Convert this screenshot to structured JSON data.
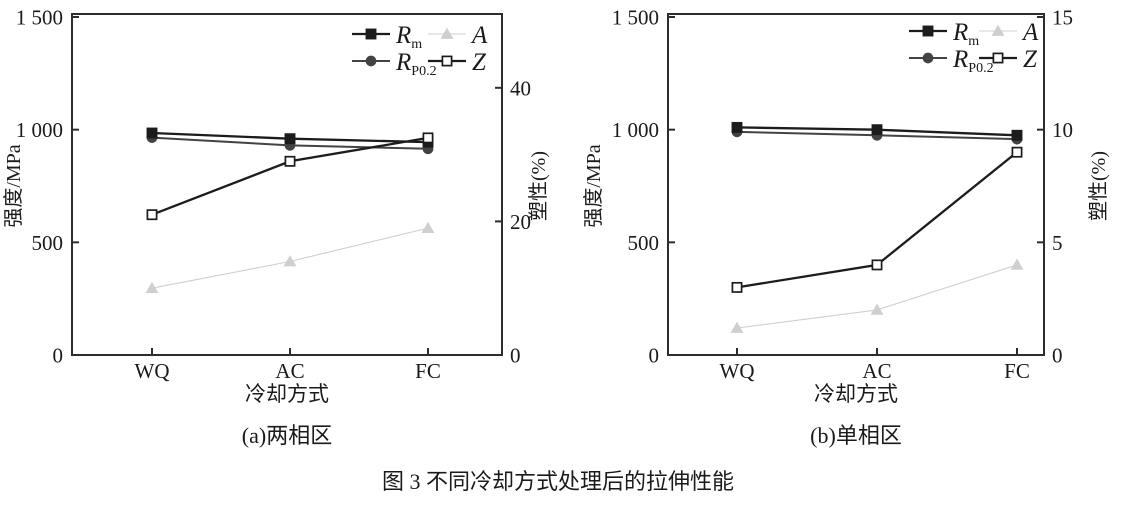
{
  "figure": {
    "caption": "图 3 不同冷却方式处理后的拉伸性能"
  },
  "chart_data": [
    {
      "id": "a",
      "type": "line",
      "subtitle": "(a)两相区",
      "xlabel": "冷却方式",
      "ylabel_left": "强度/MPa",
      "ylabel_right": "塑性(%)",
      "categories": [
        "WQ",
        "AC",
        "FC"
      ],
      "grid": false,
      "legend_position": "top-right",
      "left_axis": {
        "range": [
          0,
          1500
        ],
        "ticks": [
          {
            "value": 0,
            "label": "0"
          },
          {
            "value": 500,
            "label": "500"
          },
          {
            "value": 1000,
            "label": "1 000"
          },
          {
            "value": 1500,
            "label": "1 500"
          }
        ]
      },
      "right_axis": {
        "range": [
          0,
          50.6
        ],
        "ticks": [
          {
            "value": 0,
            "label": "0"
          },
          {
            "value": 20,
            "label": "20"
          },
          {
            "value": 40,
            "label": "40"
          }
        ]
      },
      "series": [
        {
          "key": "Rm",
          "label": "R",
          "label_sub": "m",
          "axis": "left",
          "marker": "square",
          "fill": "filled",
          "color": "#1c1c1c",
          "line_width": 2.3,
          "values": [
            985,
            960,
            945
          ]
        },
        {
          "key": "RP0.2",
          "label": "R",
          "label_sub": "P0.2",
          "axis": "left",
          "marker": "circle",
          "fill": "filled",
          "color": "#434343",
          "line_width": 2.0,
          "values": [
            965,
            930,
            915
          ]
        },
        {
          "key": "A",
          "label": "A",
          "label_sub": "",
          "axis": "right",
          "marker": "triangle",
          "fill": "filled",
          "color": "#cfcfcf",
          "line_width": 1.1,
          "values": [
            10,
            14,
            19
          ]
        },
        {
          "key": "Z",
          "label": "Z",
          "label_sub": "",
          "axis": "right",
          "marker": "square",
          "fill": "open",
          "color": "#1c1c1c",
          "line_width": 2.3,
          "values": [
            21,
            29,
            32.5
          ]
        }
      ],
      "legend_order": [
        [
          "Rm",
          "A"
        ],
        [
          "RP0.2",
          "Z"
        ]
      ]
    },
    {
      "id": "b",
      "type": "line",
      "subtitle": "(b)单相区",
      "xlabel": "冷却方式",
      "ylabel_left": "强度/MPa",
      "ylabel_right": "塑性(%)",
      "categories": [
        "WQ",
        "AC",
        "FC"
      ],
      "grid": false,
      "legend_position": "top-right",
      "left_axis": {
        "range": [
          0,
          1500
        ],
        "ticks": [
          {
            "value": 0,
            "label": "0"
          },
          {
            "value": 500,
            "label": "500"
          },
          {
            "value": 1000,
            "label": "1 000"
          },
          {
            "value": 1500,
            "label": "1 500"
          }
        ]
      },
      "right_axis": {
        "range": [
          0,
          15
        ],
        "ticks": [
          {
            "value": 0,
            "label": "0"
          },
          {
            "value": 5,
            "label": "5"
          },
          {
            "value": 10,
            "label": "10"
          },
          {
            "value": 15,
            "label": "15"
          }
        ]
      },
      "series": [
        {
          "key": "Rm",
          "label": "R",
          "label_sub": "m",
          "axis": "left",
          "marker": "square",
          "fill": "filled",
          "color": "#1c1c1c",
          "line_width": 2.3,
          "values": [
            1010,
            1000,
            975
          ]
        },
        {
          "key": "RP0.2",
          "label": "R",
          "label_sub": "P0.2",
          "axis": "left",
          "marker": "circle",
          "fill": "filled",
          "color": "#434343",
          "line_width": 2.0,
          "values": [
            990,
            975,
            958
          ]
        },
        {
          "key": "A",
          "label": "A",
          "label_sub": "",
          "axis": "right",
          "marker": "triangle",
          "fill": "filled",
          "color": "#cfcfcf",
          "line_width": 1.1,
          "values": [
            1.2,
            2,
            4
          ]
        },
        {
          "key": "Z",
          "label": "Z",
          "label_sub": "",
          "axis": "right",
          "marker": "square",
          "fill": "open",
          "color": "#1c1c1c",
          "line_width": 2.3,
          "values": [
            3,
            4,
            9
          ]
        }
      ],
      "legend_order": [
        [
          "Rm",
          "A"
        ],
        [
          "RP0.2",
          "Z"
        ]
      ]
    }
  ]
}
